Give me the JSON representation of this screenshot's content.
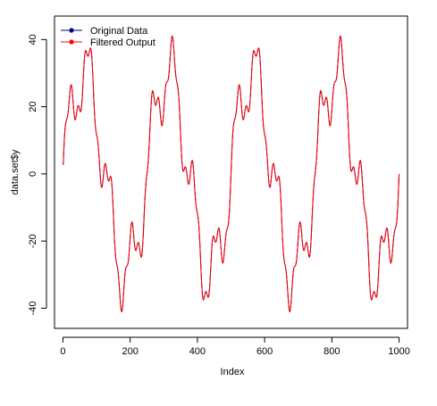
{
  "chart_data": {
    "type": "line",
    "xlabel": "Index",
    "ylabel": "data.set$y",
    "xlim": [
      -25,
      1025
    ],
    "ylim": [
      -46,
      47
    ],
    "xticks": [
      0,
      200,
      400,
      600,
      800,
      1000
    ],
    "yticks": [
      -40,
      -20,
      0,
      20,
      40
    ],
    "xtick_labels": [
      "0",
      "200",
      "400",
      "600",
      "800",
      "1000"
    ],
    "ytick_labels": [
      "-40",
      "-20",
      "0",
      "20",
      "40"
    ],
    "grid": false,
    "legend": {
      "position": "top-left",
      "entries": [
        {
          "name": "Original Data",
          "color": "#00008b"
        },
        {
          "name": "Filtered Output",
          "color": "#ff0000"
        }
      ]
    },
    "series": [
      {
        "name": "Original Data",
        "color": "#00008b",
        "x_range": [
          1,
          1000
        ],
        "n_points": 1000,
        "formula": "y = 30*sin(2*pi*x/250) + 10*sin(2*pi*x/62.5) + 3*sin(2*pi*x/20)"
      },
      {
        "name": "Filtered Output",
        "color": "#ff0000",
        "x_range": [
          1,
          1000
        ],
        "n_points": 1000,
        "formula": "y = 30*sin(2*pi*x/250) + 10*sin(2*pi*x/62.5) + 3*sin(2*pi*x/20)"
      }
    ]
  }
}
